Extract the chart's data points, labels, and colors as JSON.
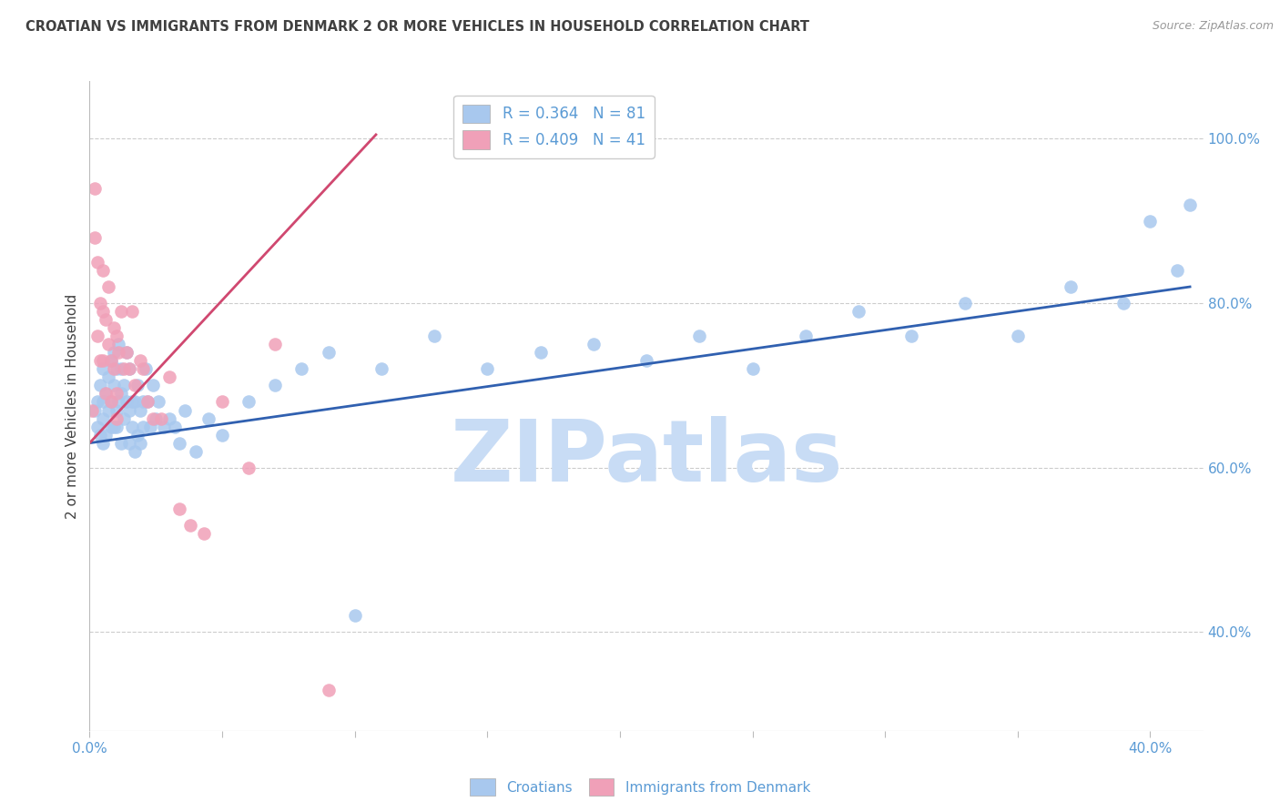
{
  "title": "CROATIAN VS IMMIGRANTS FROM DENMARK 2 OR MORE VEHICLES IN HOUSEHOLD CORRELATION CHART",
  "source": "Source: ZipAtlas.com",
  "ylabel": "2 or more Vehicles in Household",
  "xlim": [
    0.0,
    0.42
  ],
  "ylim": [
    0.28,
    1.07
  ],
  "yticks": [
    0.4,
    0.6,
    0.8,
    1.0
  ],
  "ytick_labels": [
    "40.0%",
    "60.0%",
    "80.0%",
    "100.0%"
  ],
  "xticks": [
    0.0,
    0.05,
    0.1,
    0.15,
    0.2,
    0.25,
    0.3,
    0.35,
    0.4
  ],
  "xtick_labels": [
    "0.0%",
    "",
    "",
    "",
    "",
    "",
    "",
    "",
    "40.0%"
  ],
  "blue_color": "#A8C8EE",
  "pink_color": "#F0A0B8",
  "blue_line_color": "#3060B0",
  "pink_line_color": "#D04870",
  "legend_blue_r": "R = 0.364",
  "legend_blue_n": "N = 81",
  "legend_pink_r": "R = 0.409",
  "legend_pink_n": "N = 41",
  "watermark": "ZIPatlas",
  "watermark_color": "#C8DCF5",
  "title_color": "#404040",
  "axis_label_color": "#404040",
  "tick_color": "#5B9BD5",
  "grid_color": "#CCCCCC",
  "background_color": "#FFFFFF",
  "blue_scatter_x": [
    0.002,
    0.003,
    0.003,
    0.004,
    0.004,
    0.005,
    0.005,
    0.005,
    0.005,
    0.006,
    0.006,
    0.007,
    0.007,
    0.008,
    0.008,
    0.008,
    0.009,
    0.009,
    0.009,
    0.01,
    0.01,
    0.01,
    0.011,
    0.011,
    0.012,
    0.012,
    0.012,
    0.013,
    0.013,
    0.014,
    0.014,
    0.015,
    0.015,
    0.015,
    0.016,
    0.016,
    0.017,
    0.017,
    0.018,
    0.018,
    0.019,
    0.019,
    0.02,
    0.02,
    0.021,
    0.022,
    0.023,
    0.024,
    0.025,
    0.026,
    0.028,
    0.03,
    0.032,
    0.034,
    0.036,
    0.04,
    0.045,
    0.05,
    0.06,
    0.07,
    0.08,
    0.09,
    0.1,
    0.11,
    0.13,
    0.15,
    0.17,
    0.19,
    0.21,
    0.23,
    0.25,
    0.27,
    0.29,
    0.31,
    0.33,
    0.35,
    0.37,
    0.39,
    0.4,
    0.41,
    0.415
  ],
  "blue_scatter_y": [
    0.67,
    0.65,
    0.68,
    0.64,
    0.7,
    0.66,
    0.63,
    0.68,
    0.72,
    0.64,
    0.69,
    0.67,
    0.71,
    0.65,
    0.68,
    0.73,
    0.65,
    0.7,
    0.74,
    0.67,
    0.72,
    0.65,
    0.68,
    0.75,
    0.63,
    0.69,
    0.72,
    0.66,
    0.7,
    0.68,
    0.74,
    0.63,
    0.67,
    0.72,
    0.68,
    0.65,
    0.62,
    0.68,
    0.64,
    0.7,
    0.67,
    0.63,
    0.68,
    0.65,
    0.72,
    0.68,
    0.65,
    0.7,
    0.66,
    0.68,
    0.65,
    0.66,
    0.65,
    0.63,
    0.67,
    0.62,
    0.66,
    0.64,
    0.68,
    0.7,
    0.72,
    0.74,
    0.42,
    0.72,
    0.76,
    0.72,
    0.74,
    0.75,
    0.73,
    0.76,
    0.72,
    0.76,
    0.79,
    0.76,
    0.8,
    0.76,
    0.82,
    0.8,
    0.9,
    0.84,
    0.92
  ],
  "pink_scatter_x": [
    0.001,
    0.002,
    0.002,
    0.003,
    0.003,
    0.004,
    0.004,
    0.005,
    0.005,
    0.005,
    0.006,
    0.006,
    0.007,
    0.007,
    0.008,
    0.008,
    0.009,
    0.009,
    0.01,
    0.01,
    0.011,
    0.012,
    0.013,
    0.014,
    0.015,
    0.016,
    0.017,
    0.019,
    0.02,
    0.022,
    0.024,
    0.027,
    0.03,
    0.034,
    0.038,
    0.043,
    0.05,
    0.06,
    0.07,
    0.09,
    0.01
  ],
  "pink_scatter_y": [
    0.67,
    0.94,
    0.88,
    0.76,
    0.85,
    0.73,
    0.8,
    0.79,
    0.73,
    0.84,
    0.69,
    0.78,
    0.82,
    0.75,
    0.73,
    0.68,
    0.77,
    0.72,
    0.76,
    0.69,
    0.74,
    0.79,
    0.72,
    0.74,
    0.72,
    0.79,
    0.7,
    0.73,
    0.72,
    0.68,
    0.66,
    0.66,
    0.71,
    0.55,
    0.53,
    0.52,
    0.68,
    0.6,
    0.75,
    0.33,
    0.66
  ],
  "blue_line_x": [
    0.0,
    0.415
  ],
  "blue_line_y": [
    0.63,
    0.82
  ],
  "pink_line_x": [
    0.0,
    0.108
  ],
  "pink_line_y": [
    0.63,
    1.005
  ]
}
